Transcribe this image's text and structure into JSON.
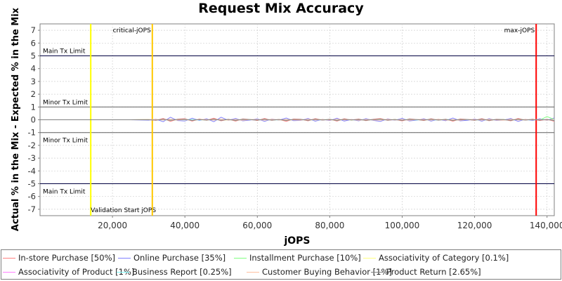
{
  "chart_data": {
    "type": "line",
    "title": "Request Mix Accuracy",
    "xlabel": "jOPS",
    "ylabel": "Actual % in the Mix - Expected % in the Mix",
    "xlim": [
      0,
      142000
    ],
    "ylim": [
      -7.5,
      7.5
    ],
    "xticks": [
      20000,
      40000,
      60000,
      80000,
      100000,
      120000,
      140000
    ],
    "xtick_labels": [
      "20,000",
      "40,000",
      "60,000",
      "80,000",
      "100,000",
      "120,000",
      "140,000"
    ],
    "yticks": [
      -7,
      -6,
      -5,
      -4,
      -3,
      -2,
      -1,
      0,
      1,
      2,
      3,
      4,
      5,
      6,
      7
    ],
    "grid": true,
    "legend_position": "bottom",
    "limit_lines": [
      {
        "label": "Main Tx Limit",
        "y": 5
      },
      {
        "label": "Minor Tx Limit",
        "y": 1
      },
      {
        "label": "Minor Tx Limit",
        "y": -1
      },
      {
        "label": "Main Tx Limit",
        "y": -5
      }
    ],
    "vertical_markers": [
      {
        "label": "Validation Start jOPS",
        "x": 14000,
        "color": "#ffff00"
      },
      {
        "label": "critical-jOPS",
        "x": 31000,
        "color": "#ffc800"
      },
      {
        "label": "max-jOPS",
        "x": 137000,
        "color": "#ff0000"
      }
    ],
    "x": [
      0,
      5000,
      10000,
      15000,
      20000,
      25000,
      30000,
      32000,
      34000,
      36000,
      38000,
      40000,
      42000,
      44000,
      46000,
      48000,
      50000,
      52000,
      54000,
      56000,
      58000,
      60000,
      62000,
      64000,
      66000,
      68000,
      70000,
      72000,
      74000,
      76000,
      78000,
      80000,
      82000,
      84000,
      86000,
      88000,
      90000,
      92000,
      94000,
      96000,
      98000,
      100000,
      102000,
      104000,
      106000,
      108000,
      110000,
      112000,
      114000,
      116000,
      118000,
      120000,
      122000,
      124000,
      126000,
      128000,
      130000,
      132000,
      134000,
      136000,
      138000,
      140000,
      142000
    ],
    "series": [
      {
        "name": "In-store Purchase [50%]",
        "color": "#ff8080",
        "values": [
          0,
          0,
          0,
          0,
          0,
          0,
          0.02,
          -0.05,
          0.1,
          -0.12,
          0.05,
          0.08,
          -0.1,
          0.06,
          -0.04,
          0.12,
          -0.08,
          0.04,
          -0.1,
          0.07,
          0.02,
          -0.06,
          0.1,
          -0.05,
          0.03,
          -0.12,
          0.06,
          0.04,
          -0.08,
          0.09,
          -0.03,
          0.05,
          -0.1,
          0.08,
          -0.02,
          0.06,
          -0.07,
          0.04,
          0.1,
          -0.05,
          0.03,
          -0.09,
          0.07,
          0.02,
          -0.06,
          0.08,
          -0.04,
          0.05,
          -0.11,
          0.06,
          0.03,
          -0.05,
          0.09,
          -0.07,
          0.04,
          0.02,
          -0.08,
          0.1,
          -0.03,
          0.05,
          -0.06,
          0.04,
          -0.12
        ]
      },
      {
        "name": "Online Purchase [35%]",
        "color": "#8080ff",
        "values": [
          0,
          0,
          0,
          0,
          0,
          0,
          -0.03,
          0.05,
          -0.15,
          0.2,
          -0.06,
          -0.1,
          0.12,
          -0.05,
          0.08,
          -0.15,
          0.2,
          -0.04,
          0.1,
          -0.08,
          -0.02,
          0.07,
          -0.12,
          0.06,
          -0.03,
          0.14,
          -0.07,
          -0.05,
          0.1,
          -0.11,
          0.04,
          -0.06,
          0.12,
          -0.1,
          0.03,
          -0.08,
          0.09,
          -0.05,
          -0.12,
          0.07,
          -0.04,
          0.11,
          -0.09,
          -0.03,
          0.08,
          -0.1,
          0.05,
          -0.07,
          0.14,
          -0.08,
          -0.04,
          0.06,
          -0.11,
          0.09,
          -0.05,
          -0.03,
          0.1,
          -0.12,
          0.04,
          -0.06,
          0.08,
          -0.05,
          0.15
        ]
      },
      {
        "name": "Installment Purchase [10%]",
        "color": "#80ff80",
        "values": [
          0,
          0,
          0,
          0,
          0,
          0,
          0.01,
          -0.02,
          0.03,
          -0.04,
          0.02,
          0.03,
          -0.03,
          0.02,
          -0.02,
          0.04,
          -0.03,
          0.02,
          -0.04,
          0.03,
          0.01,
          -0.02,
          0.03,
          -0.02,
          0.01,
          -0.04,
          0.02,
          0.02,
          -0.03,
          0.03,
          -0.01,
          0.02,
          -0.04,
          0.03,
          -0.01,
          0.02,
          -0.03,
          0.02,
          0.04,
          -0.02,
          0.01,
          -0.03,
          0.03,
          0.01,
          -0.02,
          0.03,
          -0.02,
          0.02,
          -0.04,
          0.02,
          0.01,
          -0.02,
          0.03,
          -0.03,
          0.02,
          0.01,
          -0.03,
          0.04,
          -0.01,
          0.02,
          -0.02,
          0.25,
          0.02
        ]
      },
      {
        "name": "Associativity of Category [0.1%]",
        "color": "#ffff80",
        "values": [
          0,
          0,
          0,
          0,
          0,
          0,
          0,
          0.01,
          -0.01,
          0.01,
          0,
          -0.01,
          0.01,
          0,
          -0.01,
          0.01,
          0,
          -0.01,
          0.01,
          0,
          0,
          0.01,
          -0.01,
          0,
          0.01,
          -0.01,
          0,
          0.01,
          -0.01,
          0,
          0.01,
          0,
          -0.01,
          0.01,
          0,
          -0.01,
          0.01,
          0,
          -0.01,
          0.01,
          0,
          -0.01,
          0.01,
          0,
          0,
          -0.01,
          0.01,
          0,
          -0.01,
          0.01,
          0,
          0,
          -0.01,
          0.01,
          0,
          -0.01,
          0.01,
          0,
          -0.01,
          0.01,
          0,
          0,
          0
        ]
      },
      {
        "name": "Associativity of Product [1%]",
        "color": "#ff80ff",
        "values": [
          0,
          0,
          0,
          0,
          0,
          0,
          0,
          -0.01,
          0.02,
          -0.02,
          0.01,
          0.01,
          -0.02,
          0.01,
          -0.01,
          0.02,
          -0.01,
          0.01,
          -0.02,
          0.01,
          0,
          -0.01,
          0.02,
          -0.01,
          0.01,
          -0.02,
          0.01,
          0.01,
          -0.01,
          0.02,
          -0.01,
          0.01,
          -0.02,
          0.01,
          0,
          0.01,
          -0.01,
          0.01,
          0.02,
          -0.01,
          0,
          -0.02,
          0.01,
          0.01,
          -0.01,
          0.02,
          -0.01,
          0.01,
          -0.02,
          0.01,
          0,
          -0.01,
          0.02,
          -0.01,
          0.01,
          0,
          -0.01,
          0.02,
          -0.01,
          0.01,
          -0.01,
          0.01,
          -0.02
        ]
      },
      {
        "name": "Business Report [0.25%]",
        "color": "#80ffff",
        "values": [
          0,
          0,
          0,
          0,
          0,
          0,
          0,
          0.01,
          -0.01,
          0.01,
          -0.01,
          0,
          0.01,
          -0.01,
          0.01,
          -0.01,
          0.01,
          0,
          -0.01,
          0.01,
          0,
          -0.01,
          0.01,
          0,
          -0.01,
          0.01,
          0,
          -0.01,
          0.01,
          -0.01,
          0,
          0.01,
          -0.01,
          0.01,
          0,
          -0.01,
          0.01,
          -0.01,
          0,
          0.01,
          -0.01,
          0.01,
          0,
          -0.01,
          0.01,
          0,
          -0.01,
          0.01,
          0,
          -0.01,
          0.01,
          0,
          -0.01,
          0.01,
          0,
          0,
          -0.01,
          0.01,
          0,
          -0.01,
          0.01,
          0,
          0
        ]
      },
      {
        "name": "Customer Buying Behavior [1%]",
        "color": "#ffc0a0",
        "values": [
          0,
          0,
          0,
          0,
          0,
          0,
          0.01,
          0.03,
          -0.02,
          0.04,
          -0.03,
          0.02,
          -0.04,
          0.03,
          0.02,
          -0.03,
          0.04,
          -0.02,
          0.03,
          -0.04,
          0.02,
          0.01,
          -0.03,
          0.04,
          -0.02,
          0.03,
          -0.01,
          -0.03,
          0.04,
          -0.02,
          0.02,
          -0.03,
          0.04,
          -0.01,
          0.02,
          -0.04,
          0.03,
          -0.02,
          -0.03,
          0.04,
          -0.02,
          0.03,
          -0.04,
          0.02,
          0.03,
          -0.02,
          0.04,
          -0.03,
          0.02,
          -0.04,
          0.03,
          0.02,
          -0.03,
          0.04,
          -0.02,
          -0.03,
          0.04,
          -0.02,
          0.03,
          -0.01,
          0.02,
          -0.03,
          0.04
        ]
      },
      {
        "name": "Product Return [2.65%]",
        "color": "#808080",
        "values": [
          0,
          0,
          0,
          0,
          0,
          0,
          0,
          -0.03,
          0.05,
          -0.04,
          0.03,
          0.04,
          -0.05,
          0.02,
          -0.03,
          0.05,
          -0.04,
          0.03,
          -0.05,
          0.04,
          0.01,
          -0.03,
          0.05,
          -0.03,
          0.02,
          -0.05,
          0.03,
          0.03,
          -0.04,
          0.05,
          -0.02,
          0.03,
          -0.05,
          0.04,
          -0.01,
          0.03,
          -0.04,
          0.02,
          0.05,
          -0.03,
          0.02,
          -0.05,
          0.04,
          0.01,
          -0.03,
          0.05,
          -0.02,
          0.03,
          -0.05,
          0.03,
          0.02,
          -0.03,
          0.05,
          -0.04,
          0.02,
          0.01,
          -0.04,
          0.05,
          -0.02,
          0.03,
          -0.03,
          0.02,
          -0.06
        ]
      }
    ]
  }
}
